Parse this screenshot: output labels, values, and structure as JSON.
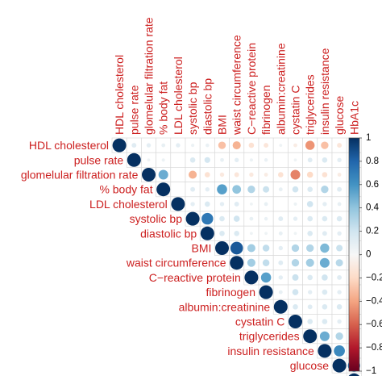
{
  "chart_data": {
    "type": "heatmap",
    "variables": [
      "HDL cholesterol",
      "pulse rate",
      "glomelular filtration rate",
      "% body fat",
      "LDL cholesterol",
      "systolic bp",
      "diastolic bp",
      "BMI",
      "waist circumference",
      "C−reactive protein",
      "fibrinogen",
      "albumin:creatinine",
      "cystatin C",
      "triglycerides",
      "insulin resistance",
      "glucose",
      "HbA1c"
    ],
    "layout": "upper triangle with diagonal",
    "label_color": "#cc1f1f",
    "colorbar": {
      "ticks": [
        "1",
        "0.8",
        "0.6",
        "0.4",
        "0.2",
        "0",
        "−0.2",
        "−0.4",
        "−0.6",
        "−0.8",
        "−1"
      ],
      "range": [
        -1,
        1
      ],
      "colors": {
        "negative": "#67001f",
        "neutral": "#f7f7f7",
        "positive": "#053061"
      }
    },
    "correlations": [
      {
        "row": 0,
        "col": 0,
        "r": 1.0
      },
      {
        "row": 0,
        "col": 1,
        "r": 0.12
      },
      {
        "row": 0,
        "col": 2,
        "r": 0.1
      },
      {
        "row": 0,
        "col": 3,
        "r": 0.08
      },
      {
        "row": 0,
        "col": 4,
        "r": 0.1
      },
      {
        "row": 0,
        "col": 5,
        "r": 0.06
      },
      {
        "row": 0,
        "col": 6,
        "r": 0.07
      },
      {
        "row": 0,
        "col": 7,
        "r": -0.3
      },
      {
        "row": 0,
        "col": 8,
        "r": -0.35
      },
      {
        "row": 0,
        "col": 9,
        "r": -0.15
      },
      {
        "row": 0,
        "col": 10,
        "r": -0.12
      },
      {
        "row": 0,
        "col": 11,
        "r": 0.05
      },
      {
        "row": 0,
        "col": 12,
        "r": -0.08
      },
      {
        "row": 0,
        "col": 13,
        "r": -0.45
      },
      {
        "row": 0,
        "col": 14,
        "r": -0.3
      },
      {
        "row": 0,
        "col": 15,
        "r": -0.12
      },
      {
        "row": 0,
        "col": 16,
        "r": -0.1
      },
      {
        "row": 1,
        "col": 1,
        "r": 1.0
      },
      {
        "row": 1,
        "col": 2,
        "r": 0.05
      },
      {
        "row": 1,
        "col": 3,
        "r": 0.06
      },
      {
        "row": 1,
        "col": 5,
        "r": 0.15
      },
      {
        "row": 1,
        "col": 6,
        "r": 0.18
      },
      {
        "row": 1,
        "col": 7,
        "r": 0.08
      },
      {
        "row": 1,
        "col": 8,
        "r": 0.1
      },
      {
        "row": 1,
        "col": 9,
        "r": 0.06
      },
      {
        "row": 1,
        "col": 10,
        "r": 0.07
      },
      {
        "row": 1,
        "col": 12,
        "r": 0.05
      },
      {
        "row": 1,
        "col": 13,
        "r": 0.12
      },
      {
        "row": 1,
        "col": 14,
        "r": 0.15
      },
      {
        "row": 1,
        "col": 15,
        "r": 0.1
      },
      {
        "row": 1,
        "col": 16,
        "r": 0.08
      },
      {
        "row": 2,
        "col": 2,
        "r": 1.0
      },
      {
        "row": 2,
        "col": 3,
        "r": 0.5
      },
      {
        "row": 2,
        "col": 5,
        "r": -0.35
      },
      {
        "row": 2,
        "col": 6,
        "r": -0.15
      },
      {
        "row": 2,
        "col": 7,
        "r": -0.1
      },
      {
        "row": 2,
        "col": 8,
        "r": -0.12
      },
      {
        "row": 2,
        "col": 9,
        "r": -0.1
      },
      {
        "row": 2,
        "col": 10,
        "r": -0.08
      },
      {
        "row": 2,
        "col": 11,
        "r": -0.15
      },
      {
        "row": 2,
        "col": 12,
        "r": -0.5
      },
      {
        "row": 2,
        "col": 13,
        "r": -0.2
      },
      {
        "row": 2,
        "col": 14,
        "r": -0.15
      },
      {
        "row": 2,
        "col": 15,
        "r": -0.08
      },
      {
        "row": 2,
        "col": 16,
        "r": -0.08
      },
      {
        "row": 3,
        "col": 3,
        "r": 1.0
      },
      {
        "row": 3,
        "col": 5,
        "r": 0.12
      },
      {
        "row": 3,
        "col": 6,
        "r": 0.1
      },
      {
        "row": 3,
        "col": 7,
        "r": 0.55
      },
      {
        "row": 3,
        "col": 8,
        "r": 0.4
      },
      {
        "row": 3,
        "col": 9,
        "r": 0.3
      },
      {
        "row": 3,
        "col": 10,
        "r": 0.22
      },
      {
        "row": 3,
        "col": 11,
        "r": 0.08
      },
      {
        "row": 3,
        "col": 12,
        "r": 0.2
      },
      {
        "row": 3,
        "col": 13,
        "r": 0.15
      },
      {
        "row": 3,
        "col": 14,
        "r": 0.3
      },
      {
        "row": 3,
        "col": 15,
        "r": 0.12
      },
      {
        "row": 3,
        "col": 16,
        "r": 0.15
      },
      {
        "row": 4,
        "col": 4,
        "r": 1.0
      },
      {
        "row": 4,
        "col": 5,
        "r": 0.1
      },
      {
        "row": 4,
        "col": 6,
        "r": 0.15
      },
      {
        "row": 4,
        "col": 7,
        "r": 0.1
      },
      {
        "row": 4,
        "col": 8,
        "r": 0.12
      },
      {
        "row": 4,
        "col": 9,
        "r": 0.05
      },
      {
        "row": 4,
        "col": 10,
        "r": 0.08
      },
      {
        "row": 4,
        "col": 12,
        "r": 0.06
      },
      {
        "row": 4,
        "col": 13,
        "r": 0.2
      },
      {
        "row": 4,
        "col": 14,
        "r": 0.1
      },
      {
        "row": 4,
        "col": 15,
        "r": 0.08
      },
      {
        "row": 4,
        "col": 16,
        "r": 0.12
      },
      {
        "row": 5,
        "col": 5,
        "r": 1.0
      },
      {
        "row": 5,
        "col": 6,
        "r": 0.72
      },
      {
        "row": 5,
        "col": 7,
        "r": 0.15
      },
      {
        "row": 5,
        "col": 8,
        "r": 0.2
      },
      {
        "row": 5,
        "col": 9,
        "r": 0.08
      },
      {
        "row": 5,
        "col": 10,
        "r": 0.07
      },
      {
        "row": 5,
        "col": 11,
        "r": 0.12
      },
      {
        "row": 5,
        "col": 12,
        "r": 0.1
      },
      {
        "row": 5,
        "col": 13,
        "r": 0.15
      },
      {
        "row": 5,
        "col": 14,
        "r": 0.15
      },
      {
        "row": 5,
        "col": 15,
        "r": 0.15
      },
      {
        "row": 5,
        "col": 16,
        "r": 0.1
      },
      {
        "row": 6,
        "col": 6,
        "r": 1.0
      },
      {
        "row": 6,
        "col": 7,
        "r": 0.15
      },
      {
        "row": 6,
        "col": 8,
        "r": 0.15
      },
      {
        "row": 6,
        "col": 9,
        "r": 0.05
      },
      {
        "row": 6,
        "col": 10,
        "r": 0.05
      },
      {
        "row": 6,
        "col": 11,
        "r": 0.08
      },
      {
        "row": 6,
        "col": 12,
        "r": 0.05
      },
      {
        "row": 6,
        "col": 13,
        "r": 0.15
      },
      {
        "row": 6,
        "col": 14,
        "r": 0.12
      },
      {
        "row": 6,
        "col": 15,
        "r": 0.1
      },
      {
        "row": 6,
        "col": 16,
        "r": 0.08
      },
      {
        "row": 7,
        "col": 7,
        "r": 1.0
      },
      {
        "row": 7,
        "col": 8,
        "r": 0.85
      },
      {
        "row": 7,
        "col": 9,
        "r": 0.35
      },
      {
        "row": 7,
        "col": 10,
        "r": 0.25
      },
      {
        "row": 7,
        "col": 11,
        "r": 0.1
      },
      {
        "row": 7,
        "col": 12,
        "r": 0.3
      },
      {
        "row": 7,
        "col": 13,
        "r": 0.3
      },
      {
        "row": 7,
        "col": 14,
        "r": 0.45
      },
      {
        "row": 7,
        "col": 15,
        "r": 0.22
      },
      {
        "row": 7,
        "col": 16,
        "r": 0.25
      },
      {
        "row": 8,
        "col": 8,
        "r": 1.0
      },
      {
        "row": 8,
        "col": 9,
        "r": 0.35
      },
      {
        "row": 8,
        "col": 10,
        "r": 0.25
      },
      {
        "row": 8,
        "col": 11,
        "r": 0.12
      },
      {
        "row": 8,
        "col": 12,
        "r": 0.3
      },
      {
        "row": 8,
        "col": 13,
        "r": 0.35
      },
      {
        "row": 8,
        "col": 14,
        "r": 0.5
      },
      {
        "row": 8,
        "col": 15,
        "r": 0.28
      },
      {
        "row": 8,
        "col": 16,
        "r": 0.3
      },
      {
        "row": 9,
        "col": 9,
        "r": 1.0
      },
      {
        "row": 9,
        "col": 10,
        "r": 0.55
      },
      {
        "row": 9,
        "col": 11,
        "r": 0.1
      },
      {
        "row": 9,
        "col": 12,
        "r": 0.22
      },
      {
        "row": 9,
        "col": 13,
        "r": 0.15
      },
      {
        "row": 9,
        "col": 14,
        "r": 0.2
      },
      {
        "row": 9,
        "col": 15,
        "r": 0.12
      },
      {
        "row": 9,
        "col": 16,
        "r": 0.15
      },
      {
        "row": 10,
        "col": 10,
        "r": 1.0
      },
      {
        "row": 10,
        "col": 11,
        "r": 0.08
      },
      {
        "row": 10,
        "col": 12,
        "r": 0.2
      },
      {
        "row": 10,
        "col": 13,
        "r": 0.1
      },
      {
        "row": 10,
        "col": 14,
        "r": 0.15
      },
      {
        "row": 10,
        "col": 15,
        "r": 0.1
      },
      {
        "row": 10,
        "col": 16,
        "r": 0.12
      },
      {
        "row": 11,
        "col": 11,
        "r": 1.0
      },
      {
        "row": 11,
        "col": 12,
        "r": 0.15
      },
      {
        "row": 11,
        "col": 13,
        "r": 0.12
      },
      {
        "row": 11,
        "col": 14,
        "r": 0.15
      },
      {
        "row": 11,
        "col": 15,
        "r": 0.15
      },
      {
        "row": 11,
        "col": 16,
        "r": 0.15
      },
      {
        "row": 12,
        "col": 12,
        "r": 1.0
      },
      {
        "row": 12,
        "col": 13,
        "r": 0.15
      },
      {
        "row": 12,
        "col": 14,
        "r": 0.15
      },
      {
        "row": 12,
        "col": 15,
        "r": 0.1
      },
      {
        "row": 12,
        "col": 16,
        "r": 0.12
      },
      {
        "row": 13,
        "col": 13,
        "r": 1.0
      },
      {
        "row": 13,
        "col": 14,
        "r": 0.5
      },
      {
        "row": 13,
        "col": 15,
        "r": 0.3
      },
      {
        "row": 13,
        "col": 16,
        "r": 0.3
      },
      {
        "row": 14,
        "col": 14,
        "r": 1.0
      },
      {
        "row": 14,
        "col": 15,
        "r": 0.65
      },
      {
        "row": 14,
        "col": 16,
        "r": 0.55
      },
      {
        "row": 15,
        "col": 15,
        "r": 1.0
      },
      {
        "row": 15,
        "col": 16,
        "r": 0.8
      },
      {
        "row": 16,
        "col": 16,
        "r": 1.0
      }
    ]
  }
}
